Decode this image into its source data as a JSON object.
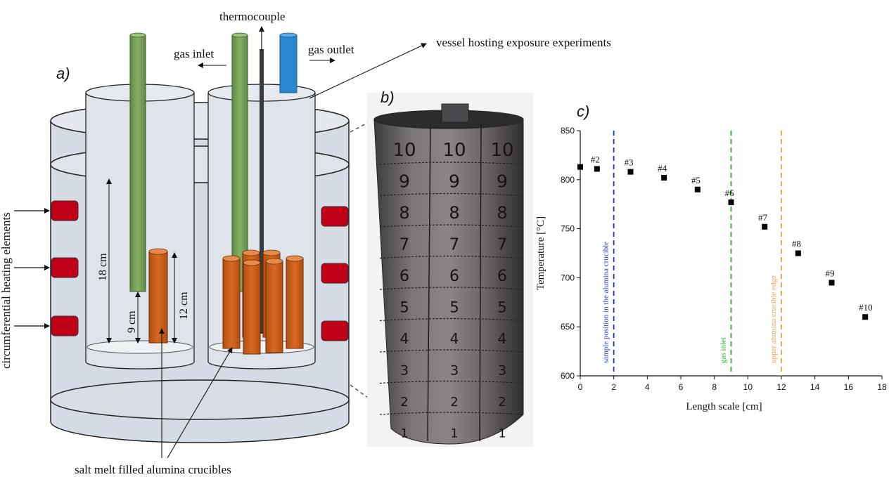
{
  "panel_a": {
    "label": "a)",
    "thermocouple": "thermocouple",
    "gas_inlet": "gas inlet",
    "gas_outlet": "gas outlet",
    "vessel": "vessel hosting exposure experiments",
    "heating": "circumferential  heating elements",
    "dim_18": "18 cm",
    "dim_9": "9 cm",
    "dim_12": "12 cm",
    "crucibles": "salt melt filled alumina crucibles",
    "colors": {
      "tube_green": "#76a05a",
      "tube_blue": "#2a86cf",
      "crucible": "#cc5c1a",
      "heater": "#c00018",
      "vessel": "#d6dce6"
    }
  },
  "panel_b": {
    "label": "b)",
    "column_marks": [
      "10",
      "9",
      "8",
      "7",
      "6",
      "5",
      "4",
      "3",
      "2",
      "1"
    ]
  },
  "panel_c": {
    "label": "c)",
    "chart_data": {
      "type": "scatter",
      "xlabel": "Length scale [cm]",
      "ylabel": "Temperature [°C]",
      "xlim": [
        0,
        18
      ],
      "ylim": [
        600,
        850
      ],
      "xticks": [
        0,
        2,
        4,
        6,
        8,
        10,
        12,
        14,
        16,
        18
      ],
      "yticks": [
        600,
        650,
        700,
        750,
        800,
        850
      ],
      "points": [
        {
          "x": 0,
          "y": 813,
          "label": ""
        },
        {
          "x": 1,
          "y": 811,
          "label": "#2"
        },
        {
          "x": 3,
          "y": 808,
          "label": "#3"
        },
        {
          "x": 5,
          "y": 802,
          "label": "#4"
        },
        {
          "x": 7,
          "y": 790,
          "label": "#5"
        },
        {
          "x": 9,
          "y": 777,
          "label": "#6"
        },
        {
          "x": 11,
          "y": 752,
          "label": "#7"
        },
        {
          "x": 13,
          "y": 725,
          "label": "#8"
        },
        {
          "x": 15,
          "y": 695,
          "label": "#9"
        },
        {
          "x": 17,
          "y": 660,
          "label": "#10"
        }
      ],
      "vlines": [
        {
          "x": 2,
          "label": "sample position in the alumina crucible",
          "color": "#2233dd"
        },
        {
          "x": 9,
          "label": "gas inlet",
          "color": "#22aa22"
        },
        {
          "x": 12,
          "label": "upper alumina crucible edge",
          "color": "#f0a050"
        }
      ],
      "grid": false,
      "legend": "none"
    }
  }
}
